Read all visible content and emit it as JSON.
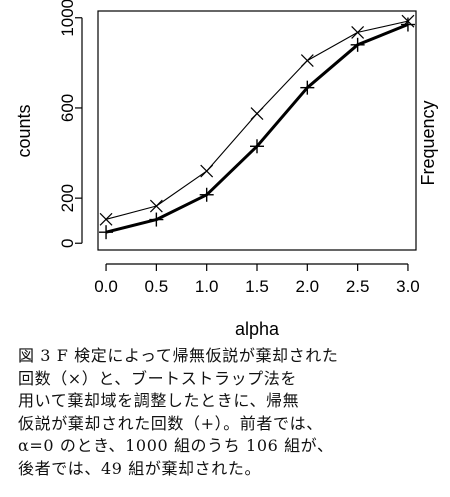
{
  "chart_data": {
    "type": "line",
    "xlabel": "alpha",
    "ylabel": "counts",
    "ylabel_right": "Frequency",
    "x": [
      0.0,
      0.5,
      1.0,
      1.5,
      2.0,
      2.5,
      3.0
    ],
    "x_tick_labels": [
      "0.0",
      "0.5",
      "1.0",
      "1.5",
      "2.0",
      "2.5",
      "3.0"
    ],
    "y_ticks": [
      0,
      200,
      600,
      1000
    ],
    "y_tick_labels": [
      "0",
      "200",
      "600",
      "1000"
    ],
    "xlim": [
      -0.08,
      3.08
    ],
    "ylim": [
      -30,
      1030
    ],
    "grid": false,
    "series": [
      {
        "marker": "x",
        "line": "thin",
        "values": [
          106,
          165,
          320,
          575,
          810,
          935,
          985
        ]
      },
      {
        "marker": "+",
        "line": "thick",
        "values": [
          49,
          105,
          215,
          430,
          690,
          880,
          970
        ]
      }
    ]
  },
  "caption": {
    "lines": [
      "図 3 F 検定によって帰無仮説が棄却された",
      "回数（×）と、ブートストラップ法を",
      "用いて棄却域を調整したときに、帰無",
      "仮説が棄却された回数（+）。前者では、",
      "α=0 のとき、1000 組のうち 106 組が、",
      "後者では、49 組が棄却された。"
    ]
  }
}
